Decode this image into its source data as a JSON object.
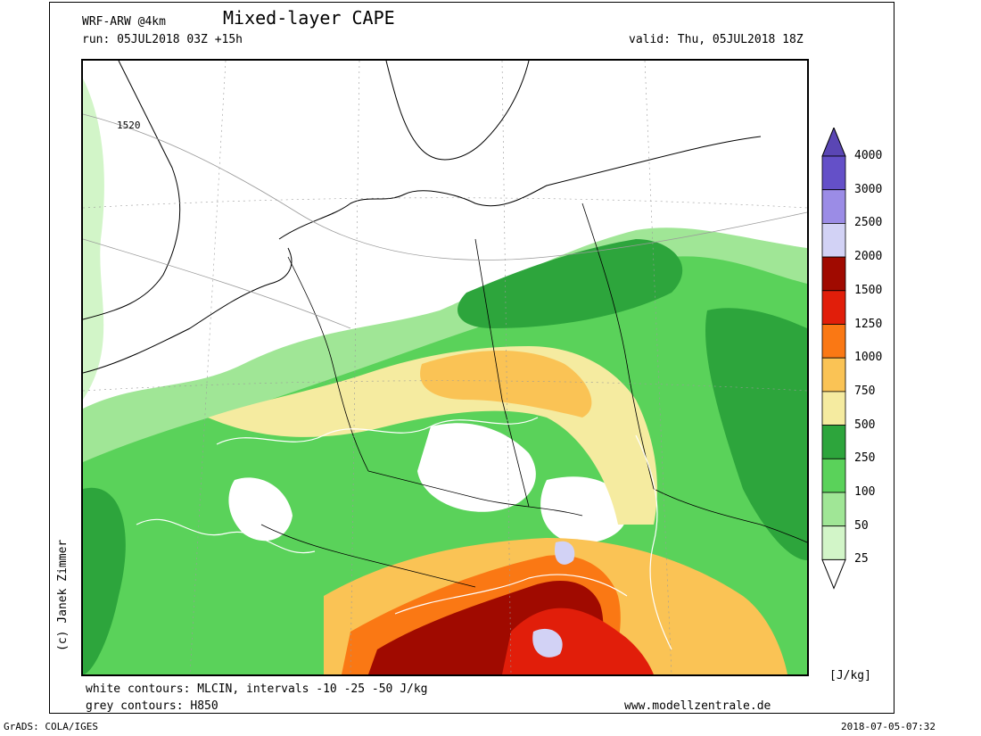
{
  "header": {
    "model": "WRF-ARW @4km",
    "title": "Mixed-layer CAPE",
    "run": "run: 05JUL2018 03Z +15h",
    "valid": "valid: Thu, 05JUL2018 18Z"
  },
  "credit": "(c) Janek Zimmer",
  "footer": {
    "line1": "white contours: MLCIN, intervals -10 -25 -50 J/kg",
    "line2": "grey contours: H850",
    "url": "www.modellzentrale.de",
    "software": "GrADS: COLA/IGES",
    "timestamp": "2018-07-05-07:32"
  },
  "map": {
    "contour_label": "1520"
  },
  "colorbar": {
    "unit": "[J/kg]",
    "levels": [
      {
        "label": "25",
        "color": "#ffffff"
      },
      {
        "label": "50",
        "color": "#d2f5c8"
      },
      {
        "label": "100",
        "color": "#a0e696"
      },
      {
        "label": "250",
        "color": "#5ad25a"
      },
      {
        "label": "500",
        "color": "#2da53c"
      },
      {
        "label": "750",
        "color": "#f5eba0"
      },
      {
        "label": "1000",
        "color": "#fac355"
      },
      {
        "label": "1250",
        "color": "#fa7814"
      },
      {
        "label": "1500",
        "color": "#e11e0a"
      },
      {
        "label": "2000",
        "color": "#a00a00"
      },
      {
        "label": "2500",
        "color": "#d2d2f5"
      },
      {
        "label": "3000",
        "color": "#9b8ce6"
      },
      {
        "label": "4000",
        "color": "#6450c8"
      }
    ],
    "top_color": "#5a46b4"
  }
}
